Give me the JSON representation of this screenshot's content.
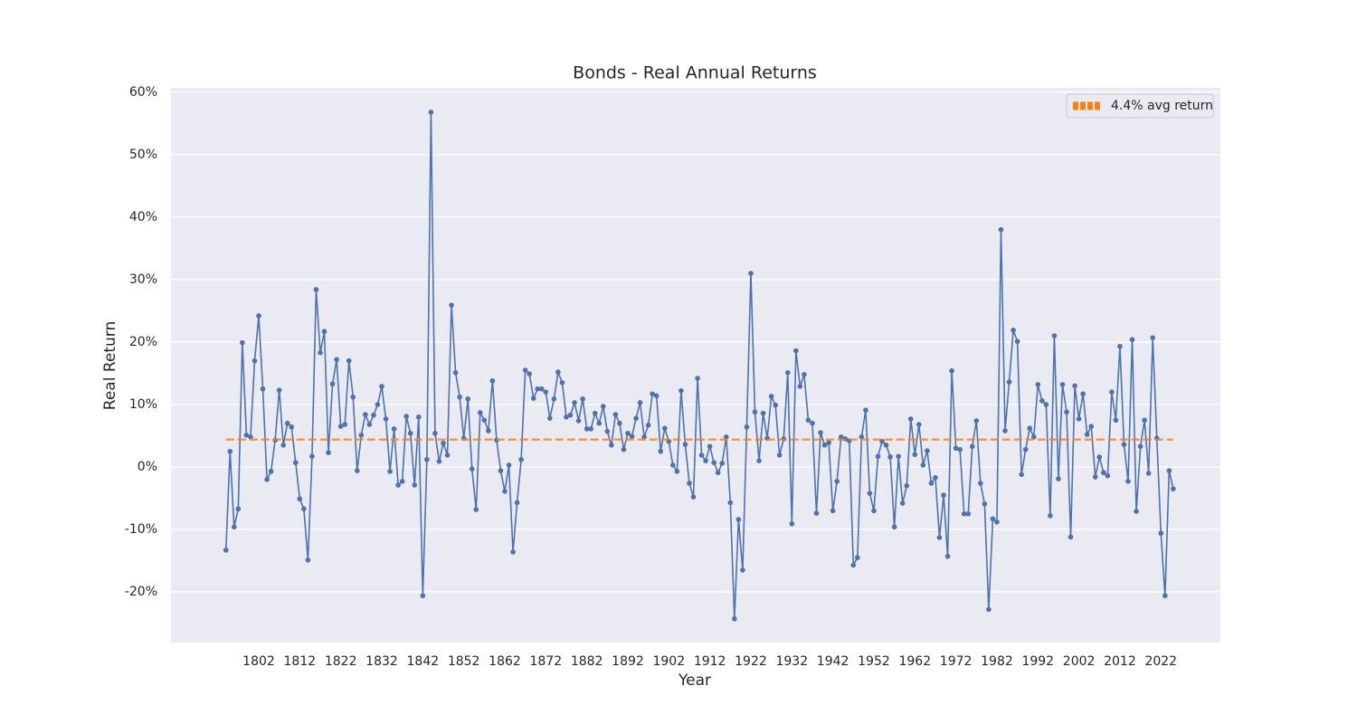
{
  "chart_data": {
    "type": "line",
    "title": "Bonds - Real Annual Returns",
    "x_label": "Year",
    "y_label": "Real Return",
    "x": [
      1794,
      1795,
      1796,
      1797,
      1798,
      1799,
      1800,
      1801,
      1802,
      1803,
      1804,
      1805,
      1806,
      1807,
      1808,
      1809,
      1810,
      1811,
      1812,
      1813,
      1814,
      1815,
      1816,
      1817,
      1818,
      1819,
      1820,
      1821,
      1822,
      1823,
      1824,
      1825,
      1826,
      1827,
      1828,
      1829,
      1830,
      1831,
      1832,
      1833,
      1834,
      1835,
      1836,
      1837,
      1838,
      1839,
      1840,
      1841,
      1842,
      1843,
      1844,
      1845,
      1846,
      1847,
      1848,
      1849,
      1850,
      1851,
      1852,
      1853,
      1854,
      1855,
      1856,
      1857,
      1858,
      1859,
      1860,
      1861,
      1862,
      1863,
      1864,
      1865,
      1866,
      1867,
      1868,
      1869,
      1870,
      1871,
      1872,
      1873,
      1874,
      1875,
      1876,
      1877,
      1878,
      1879,
      1880,
      1881,
      1882,
      1883,
      1884,
      1885,
      1886,
      1887,
      1888,
      1889,
      1890,
      1891,
      1892,
      1893,
      1894,
      1895,
      1896,
      1897,
      1898,
      1899,
      1900,
      1901,
      1902,
      1903,
      1904,
      1905,
      1906,
      1907,
      1908,
      1909,
      1910,
      1911,
      1912,
      1913,
      1914,
      1915,
      1916,
      1917,
      1918,
      1919,
      1920,
      1921,
      1922,
      1923,
      1924,
      1925,
      1926,
      1927,
      1928,
      1929,
      1930,
      1931,
      1932,
      1933,
      1934,
      1935,
      1936,
      1937,
      1938,
      1939,
      1940,
      1941,
      1942,
      1943,
      1944,
      1945,
      1946,
      1947,
      1948,
      1949,
      1950,
      1951,
      1952,
      1953,
      1954,
      1955,
      1956,
      1957,
      1958,
      1959,
      1960,
      1961,
      1962,
      1963,
      1964,
      1965,
      1966,
      1967,
      1968,
      1969,
      1970,
      1971,
      1972,
      1973,
      1974,
      1975,
      1976,
      1977,
      1978,
      1979,
      1980,
      1981,
      1982,
      1983,
      1984,
      1985,
      1986,
      1987,
      1988,
      1989,
      1990,
      1991,
      1992,
      1993,
      1994,
      1995,
      1996,
      1997,
      1998,
      1999,
      2000,
      2001,
      2002,
      2003,
      2004,
      2005,
      2006,
      2007,
      2008,
      2009,
      2010,
      2011,
      2012,
      2013,
      2014,
      2015,
      2016,
      2017,
      2018,
      2019,
      2020,
      2021,
      2022,
      2023,
      2024,
      2025
    ],
    "values": [
      -13.3,
      2.5,
      -9.6,
      -6.7,
      19.9,
      5.1,
      4.8,
      17.0,
      24.2,
      12.5,
      -2.0,
      -0.7,
      4.3,
      12.3,
      3.5,
      7.0,
      6.4,
      0.7,
      -5.1,
      -6.7,
      -14.9,
      1.7,
      28.4,
      18.3,
      21.7,
      2.3,
      13.3,
      17.2,
      6.5,
      6.8,
      17.0,
      11.2,
      -0.6,
      5.1,
      8.4,
      6.8,
      8.3,
      10.0,
      12.9,
      7.7,
      -0.7,
      6.1,
      -2.9,
      -2.3,
      8.1,
      5.4,
      -2.9,
      8.0,
      -20.6,
      1.2,
      56.8,
      5.4,
      0.9,
      3.8,
      1.9,
      25.9,
      15.1,
      11.2,
      4.6,
      10.9,
      -0.3,
      -6.8,
      8.7,
      7.5,
      5.8,
      13.8,
      4.3,
      -0.6,
      -3.9,
      0.3,
      -13.6,
      -5.7,
      1.2,
      15.5,
      14.9,
      11.0,
      12.5,
      12.5,
      12.0,
      7.8,
      10.9,
      15.2,
      13.5,
      8.0,
      8.3,
      10.3,
      7.4,
      10.9,
      6.1,
      6.1,
      8.6,
      7.0,
      9.7,
      5.7,
      3.5,
      8.4,
      7.0,
      2.8,
      5.4,
      4.9,
      7.8,
      10.3,
      4.8,
      6.7,
      11.7,
      11.4,
      2.5,
      6.2,
      4.1,
      0.3,
      -0.7,
      12.2,
      3.6,
      -2.6,
      -4.8,
      14.2,
      1.9,
      1.0,
      3.3,
      0.7,
      -0.9,
      0.6,
      4.8,
      -5.7,
      -24.3,
      -8.4,
      -16.5,
      6.4,
      31.0,
      8.8,
      1.0,
      8.6,
      4.6,
      11.3,
      9.9,
      1.9,
      4.5,
      15.1,
      -9.1,
      18.6,
      12.9,
      14.8,
      7.5,
      7.0,
      -7.4,
      5.5,
      3.5,
      3.9,
      -7.0,
      -2.3,
      4.8,
      4.5,
      4.2,
      -15.7,
      -14.5,
      4.8,
      9.1,
      -4.2,
      -7.0,
      1.7,
      4.1,
      3.5,
      1.6,
      -9.6,
      1.7,
      -5.8,
      -3.0,
      7.7,
      2.0,
      6.8,
      0.3,
      2.6,
      -2.6,
      -1.7,
      -11.3,
      -4.5,
      -14.3,
      15.4,
      3.0,
      2.8,
      -7.5,
      -7.5,
      3.3,
      7.4,
      -2.6,
      -5.9,
      -22.8,
      -8.3,
      -8.8,
      38.0,
      5.8,
      13.6,
      21.9,
      20.1,
      -1.2,
      2.8,
      6.2,
      4.8,
      13.2,
      10.6,
      10.0,
      -7.8,
      21.0,
      -1.9,
      13.2,
      8.8,
      -11.2,
      13.0,
      7.7,
      11.7,
      5.2,
      6.5,
      -1.6,
      1.6,
      -0.9,
      -1.4,
      12.0,
      7.5,
      19.3,
      3.6,
      -2.3,
      20.4,
      -7.1,
      3.3,
      7.5,
      -1.0,
      20.7,
      4.6,
      -10.6,
      -20.6,
      -0.6,
      -3.5
    ],
    "color": "#4c72b0",
    "avg_line": {
      "value": 4.4,
      "label": "4.4% avg return",
      "color": "#ff7f0e"
    },
    "legend": "upper right",
    "grid": "y",
    "xlim": [
      1780.6,
      2036.5
    ],
    "xticks": [
      1802,
      1812,
      1822,
      1832,
      1842,
      1852,
      1862,
      1872,
      1882,
      1892,
      1902,
      1912,
      1922,
      1932,
      1942,
      1952,
      1962,
      1972,
      1982,
      1992,
      2002,
      2012,
      2022
    ],
    "ylim": [
      -28.1,
      60.7
    ],
    "yticks": [
      {
        "value": -20,
        "label": "-20%"
      },
      {
        "value": -10,
        "label": "-10%"
      },
      {
        "value": 0,
        "label": "0%"
      },
      {
        "value": 10,
        "label": "10%"
      },
      {
        "value": 20,
        "label": "20%"
      },
      {
        "value": 30,
        "label": "30%"
      },
      {
        "value": 40,
        "label": "40%"
      },
      {
        "value": 50,
        "label": "50%"
      },
      {
        "value": 60,
        "label": "60%"
      }
    ]
  }
}
